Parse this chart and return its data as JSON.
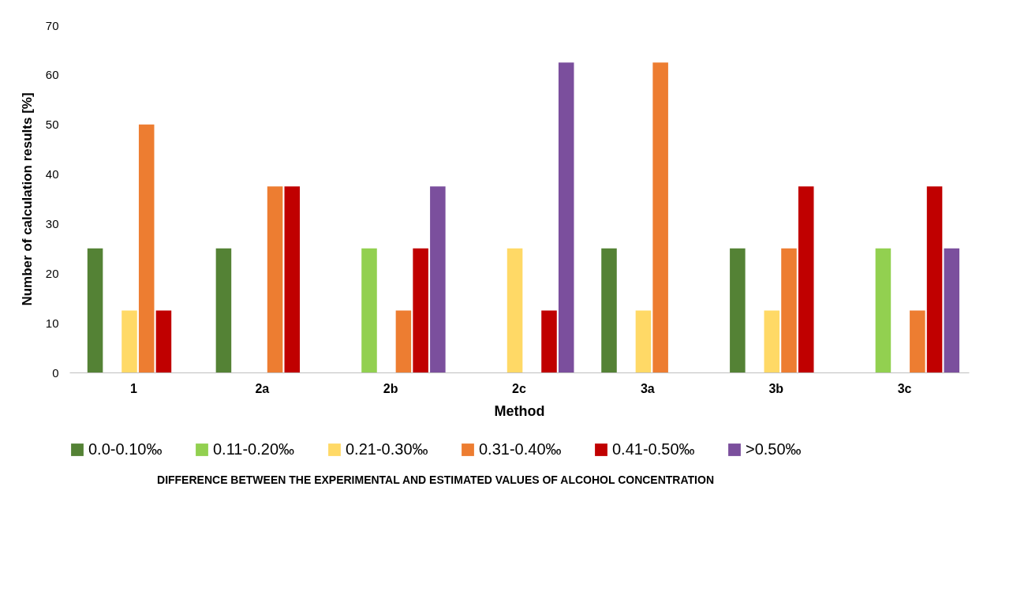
{
  "chart_data": {
    "type": "bar",
    "xlabel": "Method",
    "ylabel": "Number of calculation results [%]",
    "legend_title": "DIFFERENCE BETWEEN THE EXPERIMENTAL AND ESTIMATED VALUES OF ALCOHOL CONCENTRATION",
    "categories": [
      "1",
      "2a",
      "2b",
      "2c",
      "3a",
      "3b",
      "3c"
    ],
    "series": [
      {
        "name": "0.0-0.10‰",
        "color": "#548235",
        "values": [
          25,
          25,
          null,
          null,
          25,
          25,
          null
        ]
      },
      {
        "name": "0.11-0.20‰",
        "color": "#92d050",
        "values": [
          null,
          null,
          25,
          null,
          null,
          null,
          25
        ]
      },
      {
        "name": "0.21-0.30‰",
        "color": "#ffd966",
        "values": [
          12.5,
          null,
          null,
          25,
          12.5,
          12.5,
          null
        ]
      },
      {
        "name": "0.31-0.40‰",
        "color": "#ed7d31",
        "values": [
          50,
          37.5,
          12.5,
          null,
          62.5,
          25,
          12.5
        ]
      },
      {
        "name": "0.41-0.50‰",
        "color": "#c00000",
        "values": [
          12.5,
          37.5,
          25,
          12.5,
          null,
          37.5,
          37.5
        ]
      },
      {
        "name": ">0.50‰",
        "color": "#7b4f9d",
        "values": [
          null,
          null,
          37.5,
          62.5,
          null,
          null,
          25
        ]
      }
    ],
    "ylim": [
      0,
      70
    ],
    "yticks": [
      0,
      10,
      20,
      30,
      40,
      50,
      60,
      70
    ],
    "grid": false,
    "legend": "bottom"
  }
}
